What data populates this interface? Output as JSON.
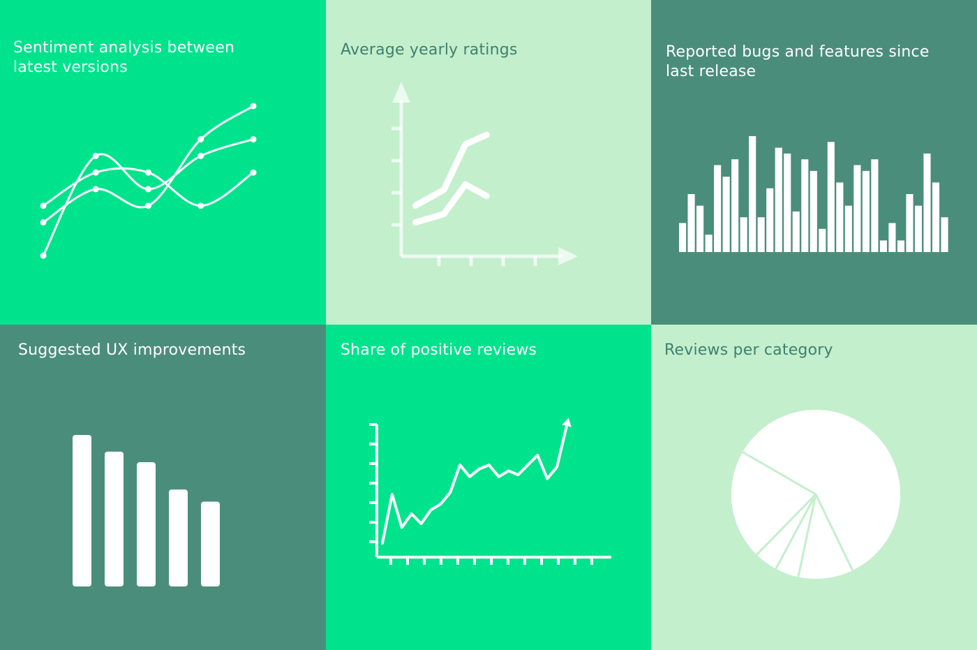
{
  "colors": {
    "bright_green": "#00E38D",
    "pale_green": "#C3EFCC",
    "teal_green": "#4B8D7B",
    "white": "#FFFFFF",
    "dark_text": "#3F8070"
  },
  "panels": [
    {
      "id": "sentiment",
      "title": "Sentiment analysis between latest versions",
      "background": "#00E38D",
      "title_color": "#FFFFFF",
      "chart_data": {
        "type": "line",
        "x": [
          1,
          2,
          3,
          4,
          5
        ],
        "series": [
          {
            "values": [
              2.0,
              4.0,
              4.0,
              2.0,
              4.0
            ]
          },
          {
            "values": [
              1.0,
              3.0,
              2.0,
              6.0,
              8.0
            ]
          },
          {
            "values": [
              -1.0,
              5.0,
              3.0,
              5.0,
              6.0
            ]
          }
        ],
        "ylim": [
          -1.5,
          8.5
        ],
        "axes_visible": false
      }
    },
    {
      "id": "avg-ratings",
      "title": "Average yearly ratings",
      "background": "#C3EFCC",
      "title_color": "#3F8070",
      "chart_data": {
        "type": "line",
        "x": [
          1,
          3,
          4.5,
          6
        ],
        "series": [
          {
            "values": [
              2.8,
              4.3,
              8.6,
              9.5
            ]
          },
          {
            "values": [
              1.2,
              2.0,
              4.8,
              3.7
            ]
          }
        ],
        "xlim": [
          0,
          10
        ],
        "ylim": [
          -2,
          14
        ],
        "x_ticks": 4,
        "y_ticks": 4
      }
    },
    {
      "id": "bugs-features",
      "title": "Reported bugs and features since last release",
      "background": "#4B8D7B",
      "title_color": "#FFFFFF",
      "chart_data": {
        "type": "bar",
        "values": [
          5,
          10,
          8,
          3,
          15,
          13,
          16,
          6,
          20,
          6,
          11,
          18,
          17,
          7,
          16,
          14,
          4,
          19,
          12,
          8,
          15,
          14,
          16,
          2,
          5,
          2,
          10,
          8,
          17,
          12,
          6
        ],
        "ylim": [
          0,
          20
        ],
        "axes_visible": false
      }
    },
    {
      "id": "ux-improvements",
      "title": "Suggested UX improvements",
      "background": "#4B8D7B",
      "title_color": "#FFFFFF",
      "chart_data": {
        "type": "bar",
        "values": [
          100,
          89,
          82,
          64,
          56
        ],
        "ylim": [
          0,
          100
        ],
        "axes_visible": false
      }
    },
    {
      "id": "positive-share",
      "title": "Share of positive reviews",
      "background": "#00E38D",
      "title_color": "#FFFFFF",
      "chart_data": {
        "type": "line",
        "values": [
          0.5,
          3.0,
          1.3,
          2.0,
          1.5,
          2.2,
          2.5,
          3.1,
          4.5,
          3.9,
          4.3,
          4.5,
          3.9,
          4.2,
          4.0,
          4.5,
          5.0,
          3.8,
          4.4,
          6.5
        ],
        "ylim": [
          0,
          7
        ],
        "x_ticks": 13,
        "y_ticks": 7,
        "end_arrow": true
      }
    },
    {
      "id": "reviews-category",
      "title": "Reviews per category",
      "background": "#C3EFCC",
      "title_color": "#3F8070",
      "chart_data": {
        "type": "pie",
        "values": [
          59.5,
          10.5,
          4.5,
          4.5,
          21.0
        ],
        "start_angle": 150
      }
    }
  ]
}
